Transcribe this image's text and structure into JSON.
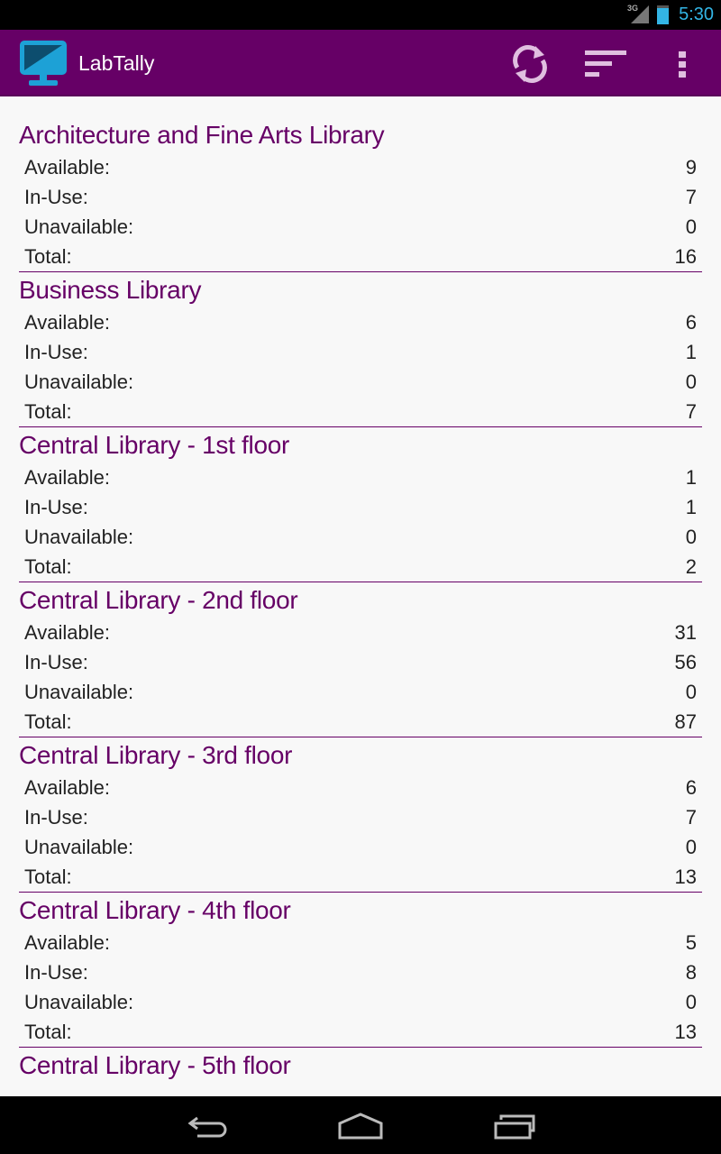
{
  "status_bar": {
    "network": "3G",
    "time": "5:30"
  },
  "app_bar": {
    "title": "LabTally",
    "actions": [
      {
        "icon": "refresh-icon"
      },
      {
        "icon": "sort-icon"
      },
      {
        "icon": "overflow-menu-icon"
      }
    ]
  },
  "colors": {
    "brand": "#660066",
    "logo": "#1da1d6"
  },
  "labels": {
    "available": "Available:",
    "in_use": "In-Use:",
    "unavailable": "Unavailable:",
    "total": "Total:"
  },
  "libraries": [
    {
      "name": "Architecture and Fine Arts Library",
      "available": "9",
      "in_use": "7",
      "unavailable": "0",
      "total": "16"
    },
    {
      "name": "Business Library",
      "available": "6",
      "in_use": "1",
      "unavailable": "0",
      "total": "7"
    },
    {
      "name": "Central Library - 1st floor",
      "available": "1",
      "in_use": "1",
      "unavailable": "0",
      "total": "2"
    },
    {
      "name": "Central Library - 2nd floor",
      "available": "31",
      "in_use": "56",
      "unavailable": "0",
      "total": "87"
    },
    {
      "name": "Central Library - 3rd floor",
      "available": "6",
      "in_use": "7",
      "unavailable": "0",
      "total": "13"
    },
    {
      "name": "Central Library - 4th floor",
      "available": "5",
      "in_use": "8",
      "unavailable": "0",
      "total": "13"
    },
    {
      "name": "Central Library - 5th floor"
    }
  ]
}
